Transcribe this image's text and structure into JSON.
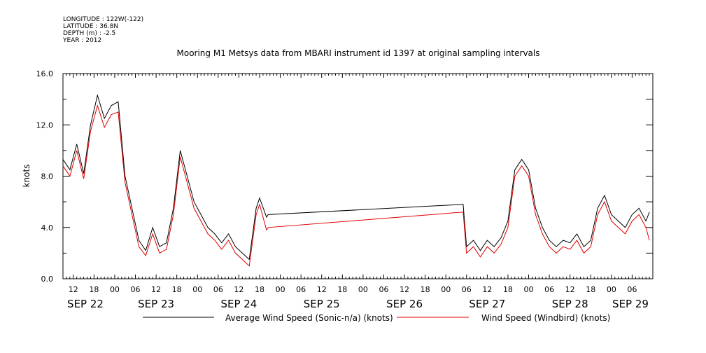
{
  "meta": {
    "longitude": "LONGITUDE : 122W(-122)",
    "latitude": "LATITUDE : 36.8N",
    "depth": "DEPTH (m) : -2.5",
    "year": "YEAR : 2012"
  },
  "chart_data": {
    "type": "line",
    "title": "Mooring M1 Metsys data from MBARI instrument id 1397 at original sampling intervals",
    "ylabel": "knots",
    "xlabel": "",
    "ylim": [
      0,
      16
    ],
    "yticks": [
      "0.0",
      "4.0",
      "8.0",
      "12.0",
      "16.0"
    ],
    "xlim_hours": [
      "2012-09-22 09:00",
      "2012-09-29 12:00"
    ],
    "hour_ticks": [
      "12",
      "18",
      "00",
      "06",
      "12",
      "18",
      "00",
      "06",
      "12",
      "18",
      "00",
      "06",
      "12",
      "18",
      "00",
      "06",
      "12",
      "18",
      "00",
      "06",
      "12",
      "18",
      "00",
      "06",
      "12",
      "18",
      "00",
      "06"
    ],
    "date_labels": [
      "SEP 22",
      "SEP 23",
      "SEP 24",
      "SEP 25",
      "SEP 26",
      "SEP 27",
      "SEP 28",
      "SEP 29"
    ],
    "grid": false,
    "legend_position": "bottom",
    "series": [
      {
        "name": "Average Wind Speed (Sonic-n/a) (knots)",
        "color": "#000000",
        "points": [
          [
            "2012-09-22 09:00",
            9.3
          ],
          [
            "2012-09-22 11:00",
            8.5
          ],
          [
            "2012-09-22 13:00",
            10.5
          ],
          [
            "2012-09-22 15:00",
            8.2
          ],
          [
            "2012-09-22 17:00",
            12.0
          ],
          [
            "2012-09-22 19:00",
            14.3
          ],
          [
            "2012-09-22 21:00",
            12.5
          ],
          [
            "2012-09-22 23:00",
            13.5
          ],
          [
            "2012-09-23 01:00",
            13.8
          ],
          [
            "2012-09-23 03:00",
            8.0
          ],
          [
            "2012-09-23 05:00",
            5.5
          ],
          [
            "2012-09-23 07:00",
            3.0
          ],
          [
            "2012-09-23 09:00",
            2.2
          ],
          [
            "2012-09-23 11:00",
            4.0
          ],
          [
            "2012-09-23 13:00",
            2.5
          ],
          [
            "2012-09-23 15:00",
            2.8
          ],
          [
            "2012-09-23 17:00",
            5.5
          ],
          [
            "2012-09-23 19:00",
            10.0
          ],
          [
            "2012-09-23 21:00",
            8.0
          ],
          [
            "2012-09-23 23:00",
            6.0
          ],
          [
            "2012-09-24 01:00",
            5.0
          ],
          [
            "2012-09-24 03:00",
            4.0
          ],
          [
            "2012-09-24 05:00",
            3.5
          ],
          [
            "2012-09-24 07:00",
            2.8
          ],
          [
            "2012-09-24 09:00",
            3.5
          ],
          [
            "2012-09-24 11:00",
            2.5
          ],
          [
            "2012-09-24 13:00",
            2.0
          ],
          [
            "2012-09-24 15:00",
            1.5
          ],
          [
            "2012-09-24 17:00",
            5.5
          ],
          [
            "2012-09-24 18:00",
            6.3
          ],
          [
            "2012-09-24 20:00",
            4.8
          ],
          [
            "2012-09-24 20:30",
            5.0
          ],
          [
            "2012-09-27 05:00",
            5.8
          ],
          [
            "2012-09-27 06:00",
            2.5
          ],
          [
            "2012-09-27 08:00",
            3.0
          ],
          [
            "2012-09-27 10:00",
            2.2
          ],
          [
            "2012-09-27 12:00",
            3.0
          ],
          [
            "2012-09-27 14:00",
            2.5
          ],
          [
            "2012-09-27 16:00",
            3.2
          ],
          [
            "2012-09-27 18:00",
            4.5
          ],
          [
            "2012-09-27 20:00",
            8.5
          ],
          [
            "2012-09-27 22:00",
            9.3
          ],
          [
            "2012-09-28 00:00",
            8.5
          ],
          [
            "2012-09-28 02:00",
            5.5
          ],
          [
            "2012-09-28 04:00",
            4.0
          ],
          [
            "2012-09-28 06:00",
            3.0
          ],
          [
            "2012-09-28 08:00",
            2.5
          ],
          [
            "2012-09-28 10:00",
            3.0
          ],
          [
            "2012-09-28 12:00",
            2.8
          ],
          [
            "2012-09-28 14:00",
            3.5
          ],
          [
            "2012-09-28 16:00",
            2.5
          ],
          [
            "2012-09-28 18:00",
            3.0
          ],
          [
            "2012-09-28 20:00",
            5.5
          ],
          [
            "2012-09-28 22:00",
            6.5
          ],
          [
            "2012-09-29 00:00",
            5.0
          ],
          [
            "2012-09-29 02:00",
            4.5
          ],
          [
            "2012-09-29 04:00",
            4.0
          ],
          [
            "2012-09-29 06:00",
            5.0
          ],
          [
            "2012-09-29 08:00",
            5.5
          ],
          [
            "2012-09-29 10:00",
            4.5
          ],
          [
            "2012-09-29 11:00",
            5.2
          ]
        ]
      },
      {
        "name": "Wind Speed (Windbird) (knots)",
        "color": "#e00000",
        "points": [
          [
            "2012-09-22 09:00",
            8.8
          ],
          [
            "2012-09-22 11:00",
            8.0
          ],
          [
            "2012-09-22 13:00",
            10.0
          ],
          [
            "2012-09-22 15:00",
            7.8
          ],
          [
            "2012-09-22 17:00",
            11.5
          ],
          [
            "2012-09-22 19:00",
            13.5
          ],
          [
            "2012-09-22 21:00",
            11.8
          ],
          [
            "2012-09-22 23:00",
            12.8
          ],
          [
            "2012-09-23 01:00",
            13.0
          ],
          [
            "2012-09-23 03:00",
            7.5
          ],
          [
            "2012-09-23 05:00",
            5.0
          ],
          [
            "2012-09-23 07:00",
            2.5
          ],
          [
            "2012-09-23 09:00",
            1.8
          ],
          [
            "2012-09-23 11:00",
            3.5
          ],
          [
            "2012-09-23 13:00",
            2.0
          ],
          [
            "2012-09-23 15:00",
            2.3
          ],
          [
            "2012-09-23 17:00",
            5.0
          ],
          [
            "2012-09-23 19:00",
            9.5
          ],
          [
            "2012-09-23 21:00",
            7.5
          ],
          [
            "2012-09-23 23:00",
            5.5
          ],
          [
            "2012-09-24 01:00",
            4.5
          ],
          [
            "2012-09-24 03:00",
            3.5
          ],
          [
            "2012-09-24 05:00",
            3.0
          ],
          [
            "2012-09-24 07:00",
            2.3
          ],
          [
            "2012-09-24 09:00",
            3.0
          ],
          [
            "2012-09-24 11:00",
            2.0
          ],
          [
            "2012-09-24 13:00",
            1.5
          ],
          [
            "2012-09-24 15:00",
            1.0
          ],
          [
            "2012-09-24 17:00",
            5.0
          ],
          [
            "2012-09-24 18:00",
            5.8
          ],
          [
            "2012-09-24 20:00",
            3.8
          ],
          [
            "2012-09-24 20:30",
            4.0
          ],
          [
            "2012-09-27 05:00",
            5.2
          ],
          [
            "2012-09-27 06:00",
            2.0
          ],
          [
            "2012-09-27 08:00",
            2.5
          ],
          [
            "2012-09-27 10:00",
            1.7
          ],
          [
            "2012-09-27 12:00",
            2.5
          ],
          [
            "2012-09-27 14:00",
            2.0
          ],
          [
            "2012-09-27 16:00",
            2.7
          ],
          [
            "2012-09-27 18:00",
            4.0
          ],
          [
            "2012-09-27 20:00",
            8.0
          ],
          [
            "2012-09-27 22:00",
            8.8
          ],
          [
            "2012-09-28 00:00",
            8.0
          ],
          [
            "2012-09-28 02:00",
            5.0
          ],
          [
            "2012-09-28 04:00",
            3.5
          ],
          [
            "2012-09-28 06:00",
            2.5
          ],
          [
            "2012-09-28 08:00",
            2.0
          ],
          [
            "2012-09-28 10:00",
            2.5
          ],
          [
            "2012-09-28 12:00",
            2.3
          ],
          [
            "2012-09-28 14:00",
            3.0
          ],
          [
            "2012-09-28 16:00",
            2.0
          ],
          [
            "2012-09-28 18:00",
            2.5
          ],
          [
            "2012-09-28 20:00",
            5.0
          ],
          [
            "2012-09-28 22:00",
            6.0
          ],
          [
            "2012-09-29 00:00",
            4.5
          ],
          [
            "2012-09-29 02:00",
            4.0
          ],
          [
            "2012-09-29 04:00",
            3.5
          ],
          [
            "2012-09-29 06:00",
            4.5
          ],
          [
            "2012-09-29 08:00",
            5.0
          ],
          [
            "2012-09-29 10:00",
            4.0
          ],
          [
            "2012-09-29 11:00",
            3.0
          ]
        ]
      }
    ]
  }
}
